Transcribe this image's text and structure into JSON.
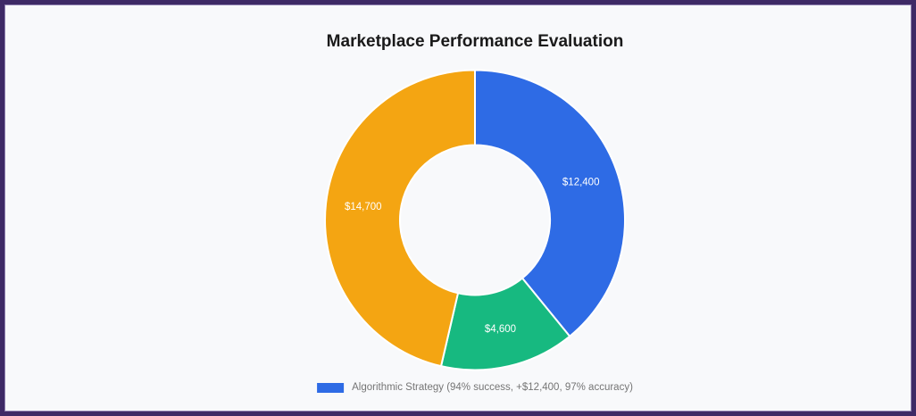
{
  "frame": {
    "border_color": "#3e2a66",
    "inner_line_color": "#8d7fae",
    "background": "#f8f9fb"
  },
  "chart_data": {
    "type": "pie",
    "variant": "doughnut",
    "title": "Marketplace Performance Evaluation",
    "segments": [
      {
        "display_value": "$12,400",
        "value": 12400,
        "color": "#2e6be5"
      },
      {
        "display_value": "$4,600",
        "value": 4600,
        "color": "#17b980"
      },
      {
        "display_value": "$14,700",
        "value": 14700,
        "color": "#f4a512"
      }
    ],
    "start_angle_deg": 0,
    "direction": "clockwise",
    "cutout_ratio": 0.5,
    "segment_label_color": "#ffffff",
    "segment_border_color": "#ffffff",
    "legend": {
      "position": "bottom",
      "items": [
        {
          "label": "Algorithmic Strategy (94% success, +$12,400, 97% accuracy)",
          "color": "#2e6be5"
        }
      ]
    }
  }
}
